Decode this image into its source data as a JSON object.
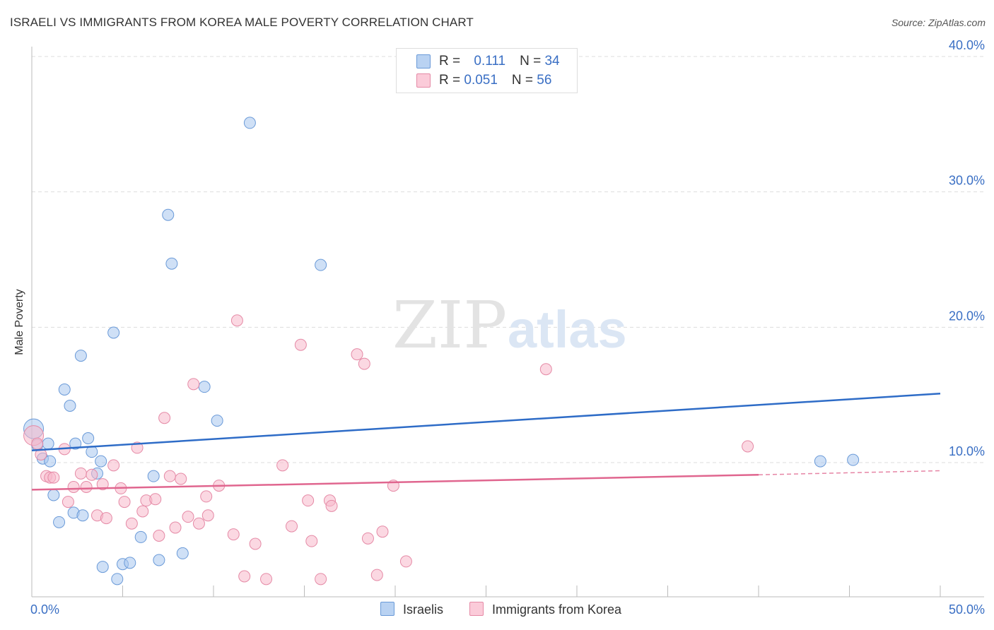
{
  "header": {
    "title": "ISRAELI VS IMMIGRANTS FROM KOREA MALE POVERTY CORRELATION CHART",
    "source": "Source: ZipAtlas.com"
  },
  "watermark": {
    "zip": "ZIP",
    "atlas": "atlas"
  },
  "legend": {
    "series": [
      {
        "r_label": "R = ",
        "r_value": "0.111",
        "n_label": "N = ",
        "n_value": "34",
        "color": "#a8c6ee",
        "stroke": "#6a9ad8"
      },
      {
        "r_label": "R = ",
        "r_value": "0.051",
        "n_label": "N = ",
        "n_value": "56",
        "color": "#f7b8cb",
        "stroke": "#e58aa6"
      }
    ]
  },
  "chart_data": {
    "type": "scatter",
    "title": "ISRAELI VS IMMIGRANTS FROM KOREA MALE POVERTY CORRELATION CHART",
    "xlabel": "",
    "ylabel": "Male Poverty",
    "xlim": [
      0,
      50
    ],
    "ylim": [
      0,
      42
    ],
    "x_tick_labels": [
      "0.0%",
      "50.0%"
    ],
    "y_ticks": [
      10,
      20,
      30,
      40
    ],
    "y_tick_labels": [
      "10.0%",
      "20.0%",
      "30.0%",
      "40.0%"
    ],
    "grid": true,
    "legend_position": "top-center",
    "series": [
      {
        "name": "Israelis",
        "color": "#a8c6ee",
        "stroke": "#6a9ad8",
        "trend": {
          "x": [
            0,
            50
          ],
          "y": [
            10.9,
            15.1
          ],
          "color": "#2e6cc7"
        },
        "points": [
          [
            0.1,
            12.5
          ],
          [
            0.3,
            11.3
          ],
          [
            0.6,
            10.3
          ],
          [
            0.9,
            11.4
          ],
          [
            1.0,
            10.1
          ],
          [
            1.2,
            7.6
          ],
          [
            1.5,
            5.6
          ],
          [
            1.8,
            15.4
          ],
          [
            2.1,
            14.2
          ],
          [
            2.3,
            6.3
          ],
          [
            2.4,
            11.4
          ],
          [
            2.7,
            17.9
          ],
          [
            2.8,
            6.1
          ],
          [
            3.1,
            11.8
          ],
          [
            3.3,
            10.8
          ],
          [
            3.6,
            9.2
          ],
          [
            3.8,
            10.1
          ],
          [
            3.9,
            2.3
          ],
          [
            4.5,
            19.6
          ],
          [
            4.7,
            1.4
          ],
          [
            5.0,
            2.5
          ],
          [
            5.4,
            2.6
          ],
          [
            6.0,
            4.5
          ],
          [
            6.7,
            9.0
          ],
          [
            7.0,
            2.8
          ],
          [
            7.5,
            28.3
          ],
          [
            7.7,
            24.7
          ],
          [
            8.3,
            3.3
          ],
          [
            9.5,
            15.6
          ],
          [
            10.2,
            13.1
          ],
          [
            12.0,
            35.1
          ],
          [
            15.9,
            24.6
          ],
          [
            43.4,
            10.1
          ],
          [
            45.2,
            10.2
          ]
        ]
      },
      {
        "name": "Immigrants from Korea",
        "color": "#f7b8cb",
        "stroke": "#e58aa6",
        "trend": {
          "x": [
            0,
            40
          ],
          "y": [
            8.0,
            9.1
          ],
          "color": "#e0668f",
          "dashed_to": [
            50,
            9.4
          ]
        },
        "points": [
          [
            0.1,
            12.0
          ],
          [
            0.3,
            11.4
          ],
          [
            0.5,
            10.6
          ],
          [
            0.8,
            9.0
          ],
          [
            1.0,
            8.9
          ],
          [
            1.2,
            8.9
          ],
          [
            1.8,
            11.0
          ],
          [
            2.0,
            7.1
          ],
          [
            2.3,
            8.2
          ],
          [
            2.7,
            9.2
          ],
          [
            3.0,
            8.2
          ],
          [
            3.3,
            9.1
          ],
          [
            3.6,
            6.1
          ],
          [
            3.9,
            8.4
          ],
          [
            4.1,
            5.9
          ],
          [
            4.5,
            9.8
          ],
          [
            4.9,
            8.1
          ],
          [
            5.1,
            7.1
          ],
          [
            5.5,
            5.5
          ],
          [
            5.8,
            11.1
          ],
          [
            6.1,
            6.4
          ],
          [
            6.3,
            7.2
          ],
          [
            6.8,
            7.3
          ],
          [
            7.0,
            4.6
          ],
          [
            7.3,
            13.3
          ],
          [
            7.6,
            9.0
          ],
          [
            7.9,
            5.2
          ],
          [
            8.2,
            8.8
          ],
          [
            8.6,
            6.0
          ],
          [
            8.9,
            15.8
          ],
          [
            9.2,
            5.5
          ],
          [
            9.6,
            7.5
          ],
          [
            9.7,
            6.1
          ],
          [
            10.3,
            8.3
          ],
          [
            11.1,
            4.7
          ],
          [
            11.3,
            20.5
          ],
          [
            11.7,
            1.6
          ],
          [
            12.3,
            4.0
          ],
          [
            12.9,
            1.4
          ],
          [
            13.8,
            9.8
          ],
          [
            14.3,
            5.3
          ],
          [
            14.8,
            18.7
          ],
          [
            15.2,
            7.2
          ],
          [
            15.4,
            4.2
          ],
          [
            15.9,
            1.4
          ],
          [
            16.4,
            7.2
          ],
          [
            16.5,
            6.8
          ],
          [
            17.9,
            18.0
          ],
          [
            18.3,
            17.3
          ],
          [
            18.5,
            4.4
          ],
          [
            19.0,
            1.7
          ],
          [
            19.3,
            4.9
          ],
          [
            19.9,
            8.3
          ],
          [
            20.6,
            2.7
          ],
          [
            28.3,
            16.9
          ],
          [
            39.4,
            11.2
          ]
        ]
      }
    ]
  }
}
